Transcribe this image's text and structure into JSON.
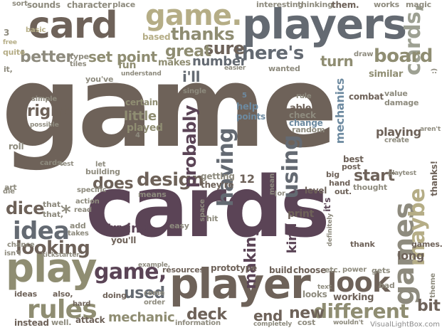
{
  "colors": {
    "dark_brown": "#6e6259",
    "plum": "#5b4456",
    "slate": "#646a72",
    "olive": "#8f8d72",
    "sage": "#9da092",
    "tan": "#b5ad86",
    "steel_blue": "#6d8aa0",
    "stone": "#8e8b7e"
  },
  "words": [
    {
      "text": "game",
      "color": "dark_brown"
    },
    {
      "text": "cards",
      "color": "plum"
    },
    {
      "text": "players",
      "color": "slate"
    },
    {
      "text": "player",
      "color": "dark_brown"
    },
    {
      "text": "card",
      "color": "dark_brown"
    },
    {
      "text": "play",
      "color": "olive"
    },
    {
      "text": "game.",
      "color": "tan"
    },
    {
      "text": "games",
      "color": "stone"
    },
    {
      "text": "cards,",
      "color": "sage"
    },
    {
      "text": "different",
      "color": "olive"
    },
    {
      "text": "game,",
      "color": "plum"
    },
    {
      "text": "look",
      "color": "dark_brown"
    },
    {
      "text": "idea",
      "color": "slate"
    },
    {
      "text": "rules",
      "color": "olive"
    },
    {
      "text": "design",
      "color": "dark_brown"
    },
    {
      "text": "having",
      "color": "slate"
    },
    {
      "text": "using",
      "color": "slate"
    },
    {
      "text": "probably",
      "color": "plum"
    },
    {
      "text": "maybe",
      "color": "tan"
    },
    {
      "text": "there's",
      "color": "slate"
    },
    {
      "text": "thanks",
      "color": "olive"
    },
    {
      "text": "sure",
      "color": "dark_brown"
    },
    {
      "text": "board",
      "color": "olive"
    },
    {
      "text": "turn",
      "color": "olive"
    },
    {
      "text": "better",
      "color": "stone"
    },
    {
      "text": "great",
      "color": "olive"
    },
    {
      "text": "looking",
      "color": "dark_brown"
    },
    {
      "text": "dice",
      "color": "dark_brown"
    },
    {
      "text": "right",
      "color": "dark_brown"
    },
    {
      "text": "deck",
      "color": "dark_brown"
    },
    {
      "text": "new",
      "color": "dark_brown"
    },
    {
      "text": "bit",
      "color": "dark_brown"
    },
    {
      "text": "making",
      "color": "plum"
    },
    {
      "text": "trying",
      "color": "plum"
    },
    {
      "text": "used",
      "color": "slate"
    },
    {
      "text": "start",
      "color": "dark_brown"
    },
    {
      "text": "does",
      "color": "dark_brown"
    },
    {
      "text": "end",
      "color": "dark_brown"
    },
    {
      "text": "i'll",
      "color": "slate"
    },
    {
      "text": "number",
      "color": "slate"
    },
    {
      "text": "set",
      "color": "olive"
    },
    {
      "text": "point",
      "color": "olive"
    },
    {
      "text": "mechanics",
      "color": "steel_blue"
    },
    {
      "text": "mechanic",
      "color": "olive"
    },
    {
      "text": "little",
      "color": "olive"
    },
    {
      "text": "playing",
      "color": "dark_brown"
    },
    {
      "text": "long",
      "color": "dark_brown"
    },
    {
      "text": "thanks!",
      "color": "dark_brown"
    },
    {
      "text": "kind",
      "color": "plum"
    },
    {
      "text": "it's",
      "color": "plum"
    },
    {
      "text": "fun",
      "color": "olive"
    },
    {
      "text": "makes",
      "color": "olive"
    },
    {
      "text": "played",
      "color": "olive"
    },
    {
      "text": "character",
      "color": "stone"
    },
    {
      "text": "sounds",
      "color": "stone"
    },
    {
      "text": "place",
      "color": "stone"
    },
    {
      "text": "interesting",
      "color": "stone"
    },
    {
      "text": "thinking",
      "color": "stone"
    },
    {
      "text": "them.",
      "color": "dark_brown"
    },
    {
      "text": "works",
      "color": "stone"
    },
    {
      "text": "magic",
      "color": "stone"
    },
    {
      "text": "sort",
      "color": "stone"
    },
    {
      "text": "basic",
      "color": "tan"
    },
    {
      "text": "based",
      "color": "tan"
    },
    {
      "text": "quite",
      "color": "tan"
    },
    {
      "text": "free",
      "color": "tan"
    },
    {
      "text": "type",
      "color": "stone"
    },
    {
      "text": "tiles",
      "color": "stone"
    },
    {
      "text": "understand",
      "color": "stone"
    },
    {
      "text": "easier",
      "color": "stone"
    },
    {
      "text": "wanted",
      "color": "stone"
    },
    {
      "text": "similar",
      "color": "olive"
    },
    {
      "text": "draw",
      "color": "stone"
    },
    {
      "text": "combat",
      "color": "dark_brown"
    },
    {
      "text": "value",
      "color": "stone"
    },
    {
      "text": "damage",
      "color": "stone"
    },
    {
      "text": "aren't",
      "color": "stone"
    },
    {
      "text": "create",
      "color": "stone"
    },
    {
      "text": "best",
      "color": "dark_brown"
    },
    {
      "text": "post",
      "color": "dark_brown"
    },
    {
      "text": "playtest",
      "color": "stone"
    },
    {
      "text": "rule",
      "color": "stone"
    },
    {
      "text": "able",
      "color": "dark_brown"
    },
    {
      "text": "check",
      "color": "stone"
    },
    {
      "text": "change",
      "color": "steel_blue"
    },
    {
      "text": "random",
      "color": "stone"
    },
    {
      "text": "help",
      "color": "steel_blue"
    },
    {
      "text": "points",
      "color": "steel_blue"
    },
    {
      "text": "single",
      "color": "stone"
    },
    {
      "text": "certain",
      "color": "olive"
    },
    {
      "text": "you've",
      "color": "stone"
    },
    {
      "text": "simple",
      "color": "stone"
    },
    {
      "text": "possible",
      "color": "stone"
    },
    {
      "text": "roll",
      "color": "stone"
    },
    {
      "text": "cards.",
      "color": "stone"
    },
    {
      "text": "test",
      "color": "stone"
    },
    {
      "text": "let",
      "color": "stone"
    },
    {
      "text": "building",
      "color": "stone"
    },
    {
      "text": "specific",
      "color": "stone"
    },
    {
      "text": "means",
      "color": "stone"
    },
    {
      "text": "getting",
      "color": "stone"
    },
    {
      "text": "they're",
      "color": "dark_brown"
    },
    {
      "text": "space",
      "color": "stone"
    },
    {
      "text": "hit",
      "color": "stone"
    },
    {
      "text": "easy",
      "color": "stone"
    },
    {
      "text": "you'll",
      "color": "dark_brown"
    },
    {
      "text": "art",
      "color": "stone"
    },
    {
      "text": "that.",
      "color": "stone"
    },
    {
      "text": "that,",
      "color": "stone"
    },
    {
      "text": "action",
      "color": "stone"
    },
    {
      "text": "read",
      "color": "stone"
    },
    {
      "text": "add",
      "color": "stone"
    },
    {
      "text": "takes",
      "color": "stone"
    },
    {
      "text": "die",
      "color": "stone"
    },
    {
      "text": "chance",
      "color": "stone"
    },
    {
      "text": "isn't",
      "color": "stone"
    },
    {
      "text": "kickstarter",
      "color": "stone"
    },
    {
      "text": "ideas",
      "color": "dark_brown"
    },
    {
      "text": "also,",
      "color": "dark_brown"
    },
    {
      "text": "instead",
      "color": "dark_brown"
    },
    {
      "text": "well.",
      "color": "stone"
    },
    {
      "text": "attack",
      "color": "dark_brown"
    },
    {
      "text": "hard",
      "color": "dark_brown"
    },
    {
      "text": "doing",
      "color": "dark_brown"
    },
    {
      "text": "come",
      "color": "stone"
    },
    {
      "text": "order",
      "color": "stone"
    },
    {
      "text": "example,",
      "color": "stone"
    },
    {
      "text": "resources",
      "color": "dark_brown"
    },
    {
      "text": "prototype",
      "color": "dark_brown"
    },
    {
      "text": "information",
      "color": "stone"
    },
    {
      "text": "build",
      "color": "dark_brown"
    },
    {
      "text": "choose",
      "color": "dark_brown"
    },
    {
      "text": "completely",
      "color": "stone"
    },
    {
      "text": "cost",
      "color": "stone"
    },
    {
      "text": "etc.",
      "color": "stone"
    },
    {
      "text": "power",
      "color": "stone"
    },
    {
      "text": "gets",
      "color": "stone"
    },
    {
      "text": "bad",
      "color": "stone"
    },
    {
      "text": "wouldn't",
      "color": "stone"
    },
    {
      "text": "working",
      "color": "dark_brown"
    },
    {
      "text": "looks",
      "color": "stone"
    },
    {
      "text": "text",
      "color": "stone"
    },
    {
      "text": "theme",
      "color": "stone"
    },
    {
      "text": "games.",
      "color": "dark_brown"
    },
    {
      "text": "thank",
      "color": "dark_brown"
    },
    {
      "text": "definitely",
      "color": "stone"
    },
    {
      "text": "print",
      "color": "dark_brown"
    },
    {
      "text": "mean",
      "color": "stone"
    },
    {
      "text": "(or",
      "color": "stone"
    },
    {
      "text": "level",
      "color": "dark_brown"
    },
    {
      "text": "big",
      "color": "dark_brown"
    },
    {
      "text": "hand",
      "color": "dark_brown"
    },
    {
      "text": "out.",
      "color": "dark_brown"
    },
    {
      "text": "thought",
      "color": "stone"
    },
    {
      "text": "12",
      "color": "dark_brown"
    },
    {
      "text": "5",
      "color": "steel_blue"
    },
    {
      "text": "4",
      "color": "stone"
    },
    {
      "text": "3",
      "color": "stone"
    },
    {
      "text": "it,",
      "color": "stone"
    },
    {
      "text": "*",
      "color": "stone"
    },
    {
      "text": ":)",
      "color": "stone"
    }
  ],
  "watermark": "VisualLightBox.com"
}
